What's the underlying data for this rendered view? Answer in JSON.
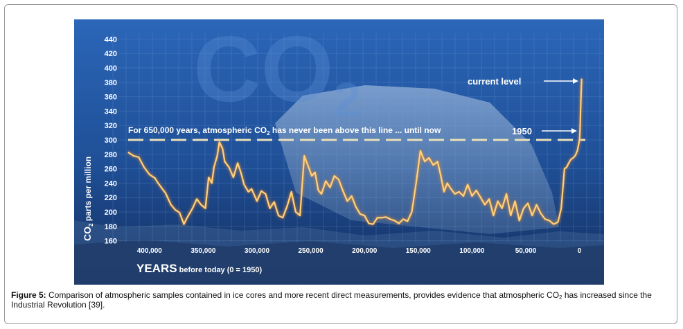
{
  "chart_data": {
    "type": "line",
    "watermark": "CO",
    "watermark_sub": "2",
    "ylabel_main": "CO",
    "ylabel_sub": "2",
    "ylabel_rest": " parts per million",
    "xlabel_main": "YEARS",
    "xlabel_rest": " before today (0 = 1950)",
    "ylim": [
      150,
      450
    ],
    "xlim": [
      425000,
      -8000
    ],
    "y_ticks": [
      160,
      180,
      200,
      220,
      240,
      260,
      280,
      300,
      320,
      340,
      360,
      380,
      400,
      420,
      440
    ],
    "x_ticks": [
      {
        "value": 400000,
        "label": "400,000"
      },
      {
        "value": 350000,
        "label": "350,000"
      },
      {
        "value": 300000,
        "label": "300,000"
      },
      {
        "value": 250000,
        "label": "250,000"
      },
      {
        "value": 200000,
        "label": "200,000"
      },
      {
        "value": 150000,
        "label": "150,000"
      },
      {
        "value": 100000,
        "label": "100,000"
      },
      {
        "value": 50000,
        "label": "50,000"
      },
      {
        "value": 0,
        "label": "0"
      }
    ],
    "threshold": {
      "value": 300
    },
    "annotations": {
      "line_text_a": "For 650,000 years, atmospheric CO",
      "line_text_sub": "2",
      "line_text_b": " has never been above this line ... until now",
      "label_1950": "1950",
      "label_current": "current level",
      "current_value": 385
    },
    "series": [
      {
        "x": [
          420000,
          415000,
          410000,
          405000,
          400000,
          395000,
          392000,
          388000,
          385000,
          380000,
          376000,
          372000,
          368000,
          365000,
          360000,
          356000,
          352000,
          348000,
          345000,
          342000,
          340000,
          337000,
          335000,
          332000,
          330000,
          326000,
          322000,
          318000,
          315000,
          312000,
          308000,
          305000,
          300000,
          296000,
          292000,
          288000,
          284000,
          280000,
          276000,
          272000,
          268000,
          264000,
          260000,
          256000,
          252000,
          249000,
          246000,
          243000,
          240000,
          236000,
          232000,
          228000,
          224000,
          220000,
          216000,
          212000,
          208000,
          204000,
          200000,
          196000,
          192000,
          188000,
          184000,
          180000,
          176000,
          172000,
          168000,
          164000,
          160000,
          156000,
          152000,
          148000,
          144000,
          140000,
          136000,
          132000,
          129000,
          126000,
          123000,
          120000,
          116000,
          112000,
          108000,
          104000,
          100000,
          96000,
          92000,
          88000,
          84000,
          80000,
          76000,
          72000,
          68000,
          64000,
          60000,
          56000,
          52000,
          48000,
          44000,
          40000,
          36000,
          32000,
          28000,
          24000,
          20000,
          17000,
          14000,
          12000,
          10000,
          8000,
          6000,
          4000,
          2000,
          0,
          -500,
          -1000,
          -1500,
          -2000
        ],
        "values": [
          283,
          278,
          276,
          262,
          252,
          247,
          240,
          232,
          226,
          210,
          203,
          199,
          183,
          192,
          205,
          218,
          210,
          205,
          248,
          240,
          262,
          278,
          297,
          288,
          270,
          262,
          248,
          268,
          255,
          238,
          228,
          232,
          215,
          229,
          225,
          205,
          214,
          195,
          192,
          208,
          228,
          200,
          195,
          278,
          262,
          250,
          255,
          230,
          225,
          243,
          234,
          250,
          245,
          229,
          215,
          222,
          207,
          197,
          195,
          184,
          183,
          192,
          192,
          193,
          190,
          188,
          184,
          190,
          187,
          200,
          240,
          285,
          270,
          275,
          265,
          270,
          250,
          228,
          240,
          233,
          225,
          228,
          222,
          238,
          222,
          230,
          220,
          210,
          218,
          195,
          215,
          205,
          225,
          195,
          215,
          188,
          205,
          212,
          195,
          210,
          198,
          190,
          188,
          183,
          186,
          205,
          260,
          262,
          268,
          273,
          275,
          278,
          285,
          300,
          315,
          340,
          365,
          385
        ]
      }
    ]
  },
  "caption": {
    "label": "Figure 5:",
    "text_a": " Comparison of atmospheric samples contained in ice cores and more recent direct measurements, provides evidence that atmospheric CO",
    "text_sub": "2",
    "text_b": " has increased since the Industrial Revolution [39]."
  }
}
